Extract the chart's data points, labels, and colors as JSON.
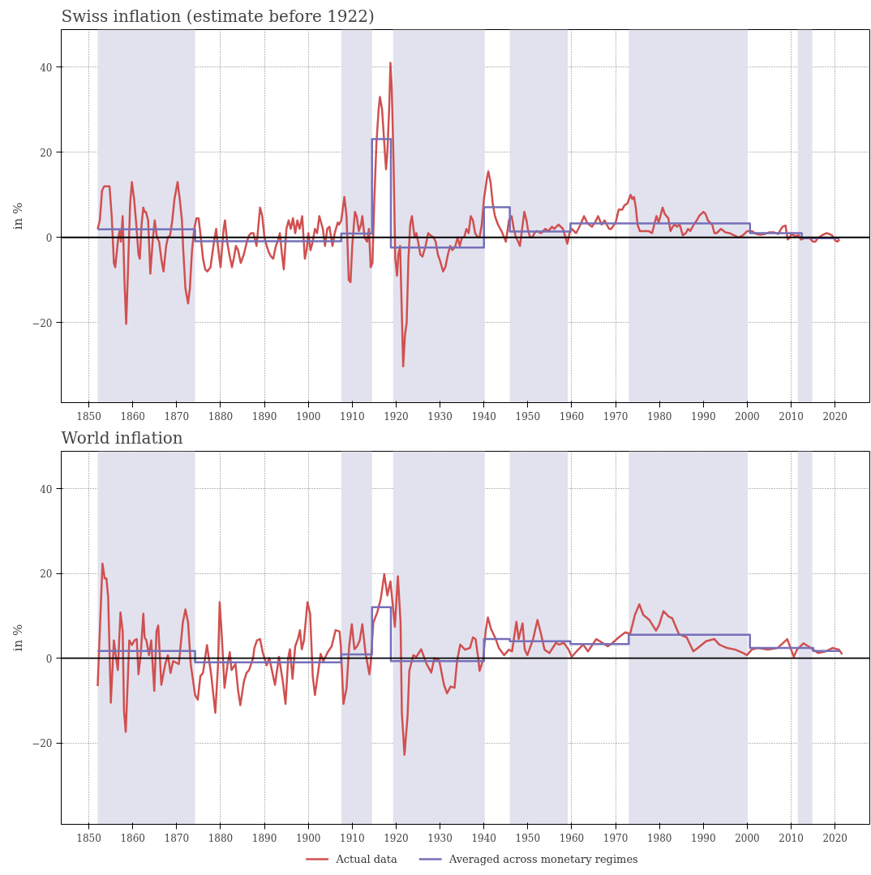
{
  "chart_data": [
    {
      "type": "line",
      "title": "Swiss inflation (estimate before 1922)",
      "ylabel": "in %",
      "xlim": [
        1843.7,
        2027.9
      ],
      "ylim": [
        -38.8,
        48.8
      ],
      "xticks": [
        1850,
        1860,
        1870,
        1880,
        1890,
        1900,
        1910,
        1920,
        1930,
        1940,
        1950,
        1960,
        1970,
        1980,
        1990,
        2000,
        2010,
        2020
      ],
      "yticks": [
        {
          "value": -20,
          "label": "−20"
        },
        0,
        20,
        40
      ],
      "grid": true,
      "legend": false,
      "bands": [
        {
          "axis": "x",
          "from": 1852,
          "to": 1874.2,
          "color": "#e2e2ee"
        },
        {
          "axis": "x",
          "from": 1907.5,
          "to": 1914.5,
          "color": "#e2e2ee"
        },
        {
          "axis": "x",
          "from": 1919.3,
          "to": 1940.2,
          "color": "#e2e2ee"
        },
        {
          "axis": "x",
          "from": 1945.9,
          "to": 1959.1,
          "color": "#e2e2ee"
        },
        {
          "axis": "x",
          "from": 1973,
          "to": 2000.1,
          "color": "#e2e2ee"
        },
        {
          "axis": "x",
          "from": 2011.5,
          "to": 2014.8,
          "color": "#e2e2ee"
        }
      ],
      "ref_lines": [
        {
          "axis": "y",
          "value": 0,
          "color": "#000000"
        }
      ],
      "series": [
        {
          "color": "#d05050",
          "x": [
            1852,
            1852.5,
            1853,
            1853.5,
            1854,
            1854.7,
            1855.2,
            1855.7,
            1856,
            1856.7,
            1857,
            1857.3,
            1857.7,
            1858.1,
            1858.5,
            1858.9,
            1859.4,
            1859.8,
            1860.3,
            1860.8,
            1861.3,
            1861.6,
            1862,
            1862.4,
            1862.7,
            1863,
            1863.5,
            1864,
            1864.6,
            1865,
            1865.5,
            1866,
            1866.5,
            1867,
            1867.6,
            1868,
            1868.5,
            1869,
            1869.5,
            1870.2,
            1870.7,
            1871.2,
            1871.5,
            1872,
            1872.6,
            1873,
            1873.5,
            1874,
            1874.5,
            1875,
            1875.5,
            1876,
            1876.5,
            1877,
            1877.7,
            1878.5,
            1879,
            1879.5,
            1880,
            1880.7,
            1881,
            1881.5,
            1882,
            1882.6,
            1883,
            1883.5,
            1884,
            1884.6,
            1885.3,
            1886,
            1886.5,
            1887,
            1887.5,
            1888.2,
            1889,
            1889.5,
            1890,
            1890.5,
            1891,
            1891.5,
            1892,
            1892.6,
            1893,
            1893.5,
            1894,
            1894.4,
            1895,
            1895.5,
            1896,
            1896.5,
            1897,
            1897.5,
            1898,
            1898.6,
            1899.2,
            1899.6,
            1900,
            1900.5,
            1901,
            1901.5,
            1902,
            1902.5,
            1903.3,
            1903.8,
            1904.3,
            1904.8,
            1905.5,
            1906,
            1906.7,
            1907,
            1907.5,
            1908.2,
            1908.7,
            1909.2,
            1909.6,
            1910,
            1910.6,
            1911,
            1911.5,
            1912,
            1912.3,
            1912.8,
            1913.4,
            1913.8,
            1914.2,
            1914.6,
            1915,
            1915.5,
            1916,
            1916.3,
            1916.8,
            1917.3,
            1917.7,
            1918,
            1918.4,
            1918.7,
            1919,
            1919.4,
            1919.8,
            1920.2,
            1920.5,
            1920.9,
            1921.3,
            1921.6,
            1922,
            1922.4,
            1922.8,
            1923.2,
            1923.6,
            1924.2,
            1924.6,
            1925,
            1925.5,
            1926,
            1926.7,
            1927.3,
            1927.8,
            1928.5,
            1929,
            1929.5,
            1930,
            1930.7,
            1931.2,
            1931.8,
            1932.3,
            1932.8,
            1933.5,
            1934,
            1934.5,
            1935,
            1935.5,
            1936,
            1936.5,
            1937,
            1937.5,
            1938,
            1938.6,
            1939,
            1939.5,
            1940,
            1940.7,
            1941,
            1941.5,
            1942,
            1942.5,
            1943.2,
            1944,
            1944.6,
            1945,
            1945.7,
            1946.3,
            1946.8,
            1947.3,
            1947.8,
            1948.2,
            1948.7,
            1949.2,
            1949.7,
            1950,
            1950.5,
            1951,
            1951.5,
            1952,
            1953,
            1954,
            1954.7,
            1955.5,
            1956,
            1957,
            1958,
            1959,
            1959.5,
            1960,
            1961,
            1962,
            1962.8,
            1963.5,
            1964,
            1964.6,
            1965.3,
            1966,
            1966.8,
            1967.5,
            1968.5,
            1969,
            1970,
            1970.7,
            1971.5,
            1972,
            1972.7,
            1973.4,
            1973.8,
            1974.2,
            1974.6,
            1975,
            1975.5,
            1976.5,
            1977.5,
            1978.3,
            1978.8,
            1979.3,
            1979.8,
            1980.2,
            1980.7,
            1981.2,
            1982,
            1982.5,
            1983,
            1983.5,
            1984,
            1984.6,
            1985.3,
            1986,
            1986.5,
            1987,
            1987.8,
            1988.5,
            1989,
            1989.5,
            1990,
            1990.5,
            1991,
            1992,
            1992.5,
            1993,
            1994,
            1995,
            1996,
            1997,
            1998,
            1999,
            2000,
            2001,
            2002,
            2003,
            2004,
            2005,
            2006,
            2007,
            2008,
            2008.7,
            2009.2,
            2009.7,
            2010,
            2011,
            2011.7,
            2012.2,
            2013,
            2014,
            2015,
            2015.5,
            2016,
            2017,
            2018,
            2018.7,
            2019.3,
            2020,
            2020.5,
            2021
          ],
          "values": [
            2,
            4,
            11,
            12,
            12,
            12,
            5,
            -6,
            -7,
            0,
            1.5,
            -1,
            5,
            -10,
            -20.3,
            -8,
            8,
            13,
            9,
            3,
            -4,
            -5,
            3,
            7,
            6,
            6,
            4,
            -8.5,
            0,
            4,
            0,
            -1,
            -5,
            -8,
            -2,
            0,
            0.5,
            4,
            9,
            13,
            9,
            4,
            -3,
            -12,
            -15.5,
            -12,
            -3,
            2,
            4.5,
            4.5,
            0,
            -5,
            -7.5,
            -8,
            -7,
            -1,
            2,
            -3,
            -7,
            2,
            4,
            -1,
            -4,
            -7,
            -5,
            -2,
            -3,
            -6,
            -4,
            -1,
            0.5,
            1,
            1,
            -2,
            7,
            5,
            0,
            -2,
            -3.5,
            -4.5,
            -5,
            -2,
            -1,
            1,
            -4,
            -7.5,
            2,
            4,
            2,
            4.5,
            1,
            4,
            2,
            5,
            -5,
            -3,
            1,
            -3,
            -1,
            2,
            1,
            5,
            2,
            -2,
            2,
            2.5,
            -2,
            1,
            3.5,
            3,
            4,
            9.5,
            5,
            -10,
            -10.5,
            -2,
            6,
            5,
            1.5,
            3,
            5,
            0,
            -1,
            2,
            -7,
            -6,
            8,
            22,
            30,
            33,
            30,
            22,
            16,
            20,
            30,
            41,
            35,
            18,
            -5,
            -9,
            -4,
            -2,
            -18,
            -30.3,
            -23,
            -20,
            -5,
            3,
            5,
            0,
            1,
            -1,
            -4,
            -4.5,
            -2,
            1,
            0.5,
            0,
            -1,
            -4,
            -5.5,
            -8,
            -7,
            -4,
            -2,
            -3,
            -2,
            0,
            -2,
            0,
            0,
            2,
            1,
            5,
            4,
            1,
            0,
            0,
            3,
            9,
            14,
            15.5,
            13,
            8,
            5,
            3,
            1.5,
            0,
            -1,
            4,
            5,
            2,
            0,
            -1,
            -2,
            2,
            6,
            4,
            2,
            0,
            0,
            1,
            1.5,
            1,
            2,
            1.5,
            2.5,
            2,
            3,
            2,
            -1.5,
            1,
            2,
            1,
            3,
            5,
            3.5,
            3,
            2.5,
            3.5,
            5,
            3,
            4,
            2,
            2,
            3.5,
            6.5,
            6.5,
            7.5,
            8,
            10,
            9,
            9.5,
            7,
            3,
            1.5,
            1.5,
            1.5,
            1,
            3,
            5,
            3.5,
            5,
            7,
            5.5,
            4.5,
            1.5,
            2.5,
            3,
            2.5,
            3,
            0.5,
            1,
            2,
            1.5,
            3,
            4,
            5,
            5.5,
            6,
            5.5,
            4,
            3,
            1,
            1,
            2,
            1.2,
            1,
            0.5,
            0,
            0.5,
            1.5,
            1.5,
            0.8,
            0.6,
            0.8,
            1.2,
            1.2,
            0.8,
            2.5,
            2.8,
            -0.5,
            0,
            0.7,
            0.3,
            0.5,
            -0.5,
            -0.2,
            0,
            -1,
            -1,
            -0.3,
            0.5,
            1,
            0.8,
            0.5,
            -0.7,
            -1,
            -0.5
          ]
        },
        {
          "type": "step",
          "color": "#7570b8",
          "x": [
            1852,
            1874.2,
            1907.5,
            1914.5,
            1918.8,
            1940,
            1945.9,
            1959.7,
            2000.6,
            2012.4,
            2021
          ],
          "values": [
            1.9,
            -0.9,
            0.9,
            23.1,
            -2.4,
            7.1,
            1.4,
            3.3,
            1.0,
            -0.2,
            -0.2
          ]
        }
      ]
    },
    {
      "type": "line",
      "title": "World inflation",
      "ylabel": "in %",
      "xlim": [
        1843.7,
        2027.9
      ],
      "ylim": [
        -39.2,
        48.8
      ],
      "xticks": [
        1850,
        1860,
        1870,
        1880,
        1890,
        1900,
        1910,
        1920,
        1930,
        1940,
        1950,
        1960,
        1970,
        1980,
        1990,
        2000,
        2010,
        2020
      ],
      "yticks": [
        {
          "value": -20,
          "label": "−20"
        },
        0,
        20,
        40
      ],
      "grid": true,
      "legend": "bottom",
      "bands": [
        {
          "axis": "x",
          "from": 1852,
          "to": 1874.2,
          "color": "#e2e2ee"
        },
        {
          "axis": "x",
          "from": 1907.5,
          "to": 1914.5,
          "color": "#e2e2ee"
        },
        {
          "axis": "x",
          "from": 1919.3,
          "to": 1940.2,
          "color": "#e2e2ee"
        },
        {
          "axis": "x",
          "from": 1945.9,
          "to": 1959.1,
          "color": "#e2e2ee"
        },
        {
          "axis": "x",
          "from": 1973,
          "to": 2000.1,
          "color": "#e2e2ee"
        },
        {
          "axis": "x",
          "from": 2011.5,
          "to": 2014.8,
          "color": "#e2e2ee"
        }
      ],
      "ref_lines": [
        {
          "axis": "y",
          "value": 0,
          "color": "#000000"
        }
      ],
      "series": [
        {
          "name": "Actual data",
          "color": "#d05050",
          "x": [
            1852,
            1853.1,
            1853.6,
            1854,
            1854.4,
            1855,
            1855.7,
            1856.2,
            1856.6,
            1857.2,
            1857.7,
            1858,
            1858.4,
            1858.9,
            1859.2,
            1859.8,
            1860.4,
            1860.9,
            1861.3,
            1861.8,
            1862.4,
            1862.7,
            1863.1,
            1863.7,
            1864.2,
            1864.9,
            1865.4,
            1865.8,
            1866.5,
            1867.4,
            1868,
            1868.6,
            1869.2,
            1870.5,
            1871.4,
            1872,
            1872.6,
            1873.2,
            1874.2,
            1874.8,
            1875.4,
            1876,
            1876.9,
            1877.9,
            1878.8,
            1879.4,
            1879.8,
            1880.3,
            1880.9,
            1881.6,
            1882.1,
            1882.5,
            1883.4,
            1884,
            1884.5,
            1885.3,
            1885.9,
            1886.5,
            1887.4,
            1887.7,
            1888.3,
            1889,
            1889.6,
            1890.5,
            1891.1,
            1892.4,
            1893.3,
            1894.2,
            1894.8,
            1895.4,
            1895.8,
            1896.4,
            1897,
            1897.6,
            1898.1,
            1898.5,
            1899,
            1899.8,
            1900.4,
            1901,
            1901.5,
            1902.2,
            1902.8,
            1903.4,
            1904.4,
            1905.3,
            1906.2,
            1907.1,
            1907.4,
            1908,
            1908.7,
            1909.3,
            1909.9,
            1910.5,
            1911.1,
            1911.7,
            1912.3,
            1913,
            1913.9,
            1914.2,
            1914.8,
            1915.7,
            1916.5,
            1917.3,
            1918,
            1918.7,
            1919.7,
            1920.4,
            1921,
            1921.3,
            1921.9,
            1922.6,
            1923,
            1923.9,
            1924.6,
            1925.7,
            1926.9,
            1928,
            1928.7,
            1929.8,
            1930.9,
            1931.6,
            1932.4,
            1933.3,
            1933.9,
            1934.6,
            1935.7,
            1936.8,
            1937.5,
            1938.1,
            1938.7,
            1939,
            1939.8,
            1940.4,
            1940.9,
            1941.6,
            1942.7,
            1943.4,
            1944.6,
            1945.7,
            1946.4,
            1947.4,
            1947.9,
            1948.8,
            1949.3,
            1949.9,
            1951.2,
            1952.2,
            1953,
            1953.8,
            1954.9,
            1956.4,
            1957.1,
            1958.2,
            1959.3,
            1960,
            1961.1,
            1962.6,
            1963.7,
            1965.6,
            1967,
            1968.2,
            1969.3,
            1970.7,
            1972.2,
            1973.3,
            1974.4,
            1975.4,
            1976.3,
            1977.7,
            1979.2,
            1979.9,
            1980.9,
            1982.1,
            1982.9,
            1984.4,
            1986.2,
            1987.7,
            1989.2,
            1990.6,
            1992.5,
            1993.6,
            1995.4,
            1997.3,
            1999.1,
            1999.9,
            2001,
            2002.4,
            2004.7,
            2006.9,
            2009.1,
            2010.6,
            2011.3,
            2012.8,
            2014.2,
            2016.1,
            2017.9,
            2019.4,
            2020.9,
            2021.6
          ],
          "values": [
            -6.6,
            22.3,
            18.8,
            18.8,
            14.3,
            -10.5,
            4.2,
            0,
            -2.8,
            10.8,
            6.3,
            -12.5,
            -17.4,
            -4.2,
            4.2,
            3.1,
            4.2,
            4.5,
            -3.8,
            0.7,
            10.5,
            4.9,
            4.2,
            0.7,
            4.2,
            -7.7,
            6.3,
            7.7,
            -6.3,
            -1.4,
            0.7,
            -3.5,
            -0.7,
            -1.4,
            8.4,
            11.5,
            8.4,
            -1.4,
            -8.7,
            -9.8,
            -4.2,
            -3.5,
            3.1,
            -4.2,
            -12.9,
            -2.1,
            13.2,
            4.9,
            -7,
            -1.4,
            1.4,
            -2.8,
            -1.4,
            -7.7,
            -11.1,
            -5.6,
            -3.5,
            -2.8,
            0,
            2.4,
            4.2,
            4.5,
            1.4,
            -1.7,
            0,
            -6.3,
            0.3,
            -5.6,
            -10.8,
            0,
            2.1,
            -4.9,
            2.8,
            4.5,
            6.6,
            2.1,
            4.2,
            13.2,
            10.5,
            -4.2,
            -8.7,
            -3.5,
            1,
            -0.7,
            1.4,
            2.8,
            6.6,
            6.3,
            2.8,
            -10.8,
            -7,
            2.8,
            8,
            2.1,
            2.8,
            4.2,
            8,
            1.4,
            -3.8,
            -1.4,
            8.4,
            10.8,
            14,
            19.8,
            14.8,
            18.1,
            7.4,
            19.3,
            8.6,
            -12.9,
            -22.8,
            -13.7,
            -3,
            0.7,
            0.3,
            2.1,
            -1.3,
            -3.4,
            0,
            -0.5,
            -6.3,
            -8.3,
            -6.7,
            -7,
            -0.5,
            3.2,
            2,
            2.4,
            4.9,
            4.5,
            0,
            -3,
            -0.5,
            6.5,
            9.6,
            6.9,
            4.5,
            2.4,
            0.7,
            2,
            1.6,
            8.6,
            4.5,
            8.2,
            2,
            0.7,
            4.5,
            9,
            5.7,
            2,
            1.2,
            3.6,
            3.2,
            3.6,
            2,
            0.3,
            1.6,
            3.2,
            1.6,
            4.5,
            3.6,
            2.8,
            3.6,
            4.9,
            6.1,
            5.7,
            10.2,
            12.7,
            10.2,
            9,
            6.5,
            7.8,
            11.1,
            9.8,
            9.4,
            5.7,
            4.9,
            1.6,
            2.8,
            4,
            4.5,
            3.2,
            2.4,
            2,
            1.2,
            0.7,
            2,
            2.4,
            2,
            2.4,
            4.5,
            0.3,
            2,
            3.5,
            2.6,
            1.2,
            1.6,
            2.4,
            2,
            0.9
          ]
        },
        {
          "type": "step",
          "name": "Averaged across monetary regimes",
          "color": "#7570b8",
          "x": [
            1852,
            1874.2,
            1907.5,
            1914.5,
            1918.8,
            1940,
            1945.9,
            1959.7,
            1973,
            2000.6,
            2015,
            2021
          ],
          "values": [
            1.7,
            -1.0,
            0.9,
            12,
            -0.7,
            4.5,
            4.0,
            3.3,
            5.5,
            2.4,
            1.7,
            1.7
          ]
        }
      ]
    }
  ]
}
